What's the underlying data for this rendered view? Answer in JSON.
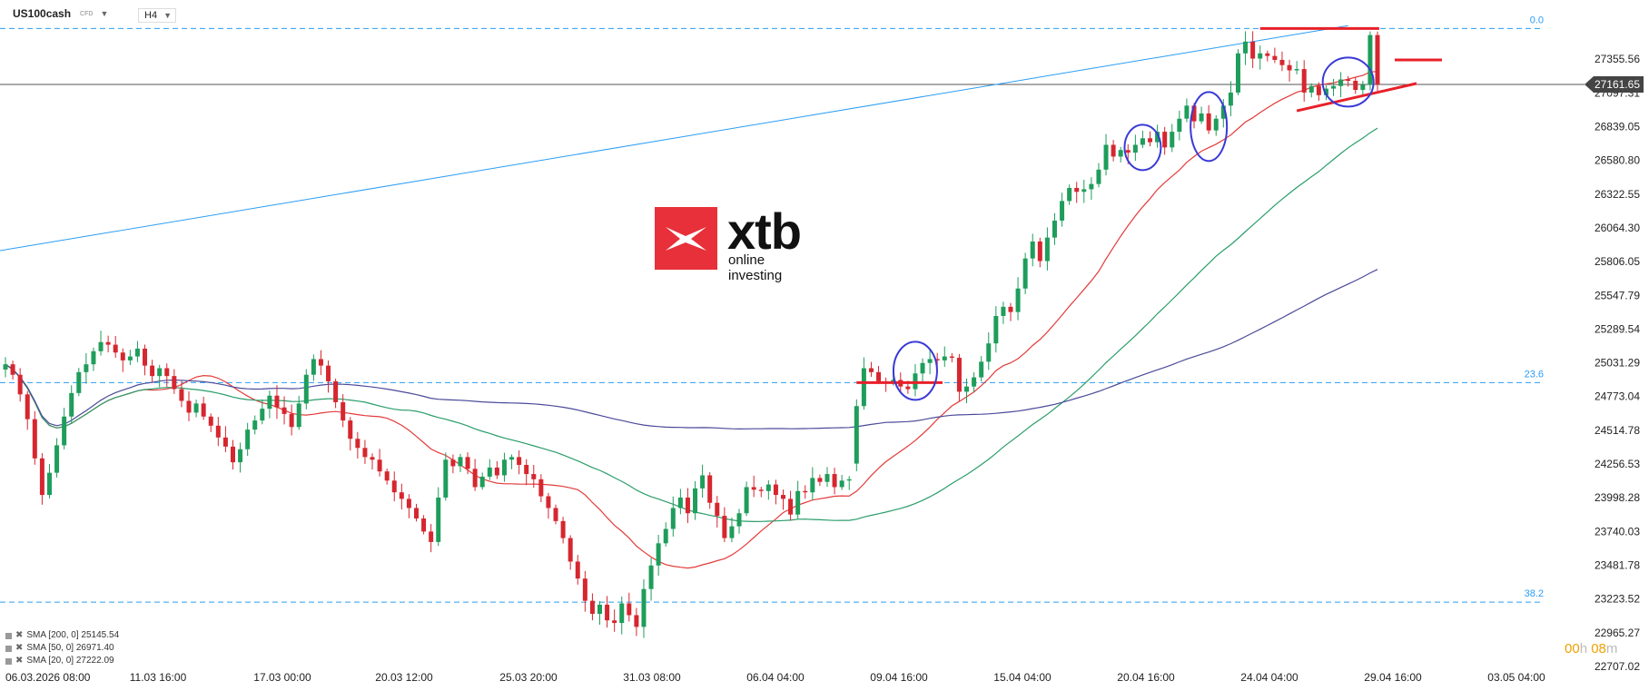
{
  "header": {
    "symbol": "US100cash",
    "symbol_tag": "CFD",
    "timeframe": "H4"
  },
  "indicators": [
    {
      "label": "SMA [200, 0] 25145.54",
      "color": "#4a4a9a"
    },
    {
      "label": "SMA [50, 0] 26971.40",
      "color": "#2a9d6a"
    },
    {
      "label": "SMA [20, 0] 27222.09",
      "color": "#e33b3b"
    }
  ],
  "timer": {
    "hours": "00",
    "h_suffix": "h",
    "minutes": "08",
    "m_suffix": "m"
  },
  "logo": {
    "word": "xtb",
    "tagline": "online investing"
  },
  "current_price": "27161.65",
  "colors": {
    "up": "#1e9d5b",
    "down": "#d6262f",
    "sma20": "#e33b3b",
    "sma50": "#2a9d6a",
    "sma200": "#4a4a9a",
    "trend": "#2a9df4",
    "level": "#e8202a",
    "ellipse": "#3a3ad6"
  },
  "chart_data": {
    "type": "candlestick",
    "y_ticks": [
      "27355.56",
      "27097.31",
      "26839.05",
      "26580.80",
      "26322.55",
      "26064.30",
      "25806.05",
      "25547.79",
      "25289.54",
      "25031.29",
      "24773.04",
      "24514.78",
      "24256.53",
      "23998.28",
      "23740.03",
      "23481.78",
      "23223.52",
      "22965.27",
      "22707.02"
    ],
    "ylim": [
      22707.02,
      27613.81
    ],
    "x_ticks": [
      "06.03.2026 08:00",
      "11.03 16:00",
      "17.03 00:00",
      "20.03 12:00",
      "25.03 20:00",
      "31.03 08:00",
      "06.04 04:00",
      "09.04 16:00",
      "15.04 04:00",
      "20.04 16:00",
      "24.04 04:00",
      "29.04 16:00",
      "03.05 04:00"
    ],
    "fib_levels": [
      {
        "label": "0.0",
        "value": 27590
      },
      {
        "label": "23.6",
        "value": 24880
      },
      {
        "label": "38.2",
        "value": 23200
      }
    ],
    "trendline": {
      "from": {
        "x": 0,
        "y": 25890
      },
      "to": {
        "x": 1,
        "y": 27612
      }
    },
    "closes": [
      25020,
      24940,
      24790,
      24600,
      24300,
      24020,
      24190,
      24400,
      24620,
      24800,
      24960,
      25020,
      25120,
      25190,
      25170,
      25110,
      25050,
      25080,
      25140,
      25010,
      24930,
      24990,
      24930,
      24830,
      24740,
      24650,
      24720,
      24620,
      24550,
      24460,
      24390,
      24270,
      24370,
      24520,
      24590,
      24680,
      24780,
      24690,
      24640,
      24540,
      24720,
      24940,
      25060,
      25010,
      24890,
      24730,
      24590,
      24450,
      24380,
      24310,
      24290,
      24200,
      24130,
      24040,
      23990,
      23920,
      23840,
      23740,
      23660,
      24000,
      24290,
      24240,
      24310,
      24220,
      24080,
      24160,
      24230,
      24170,
      24290,
      24310,
      24250,
      24180,
      24140,
      24010,
      23920,
      23820,
      23690,
      23510,
      23380,
      23210,
      23110,
      23180,
      23060,
      23040,
      23190,
      23100,
      23010,
      23300,
      23480,
      23650,
      23760,
      23920,
      24000,
      23880,
      24070,
      24170,
      23960,
      23860,
      23690,
      23780,
      23880,
      24080,
      24060,
      24050,
      24100,
      24020,
      23990,
      23870,
      24050,
      24040,
      24150,
      24120,
      24180,
      24080,
      24130,
      24140,
      24700,
      24990,
      24960,
      24890,
      24880,
      24900,
      24850,
      24830,
      24950,
      25030,
      25060,
      25050,
      25080,
      25070,
      24810,
      24850,
      24920,
      25040,
      25180,
      25390,
      25460,
      25420,
      25600,
      25830,
      25960,
      25810,
      25990,
      26120,
      26270,
      26370,
      26340,
      26360,
      26400,
      26510,
      26700,
      26610,
      26660,
      26640,
      26700,
      26750,
      26720,
      26800,
      26680,
      26800,
      26900,
      27000,
      26880,
      26940,
      26810,
      26900,
      27000,
      27100,
      27400,
      27490,
      27360,
      27400,
      27380,
      27350,
      27310,
      27270,
      27280,
      27100,
      27150,
      27080,
      27130,
      27150,
      27200,
      27190,
      27120,
      27160,
      27540,
      27161.65
    ]
  }
}
